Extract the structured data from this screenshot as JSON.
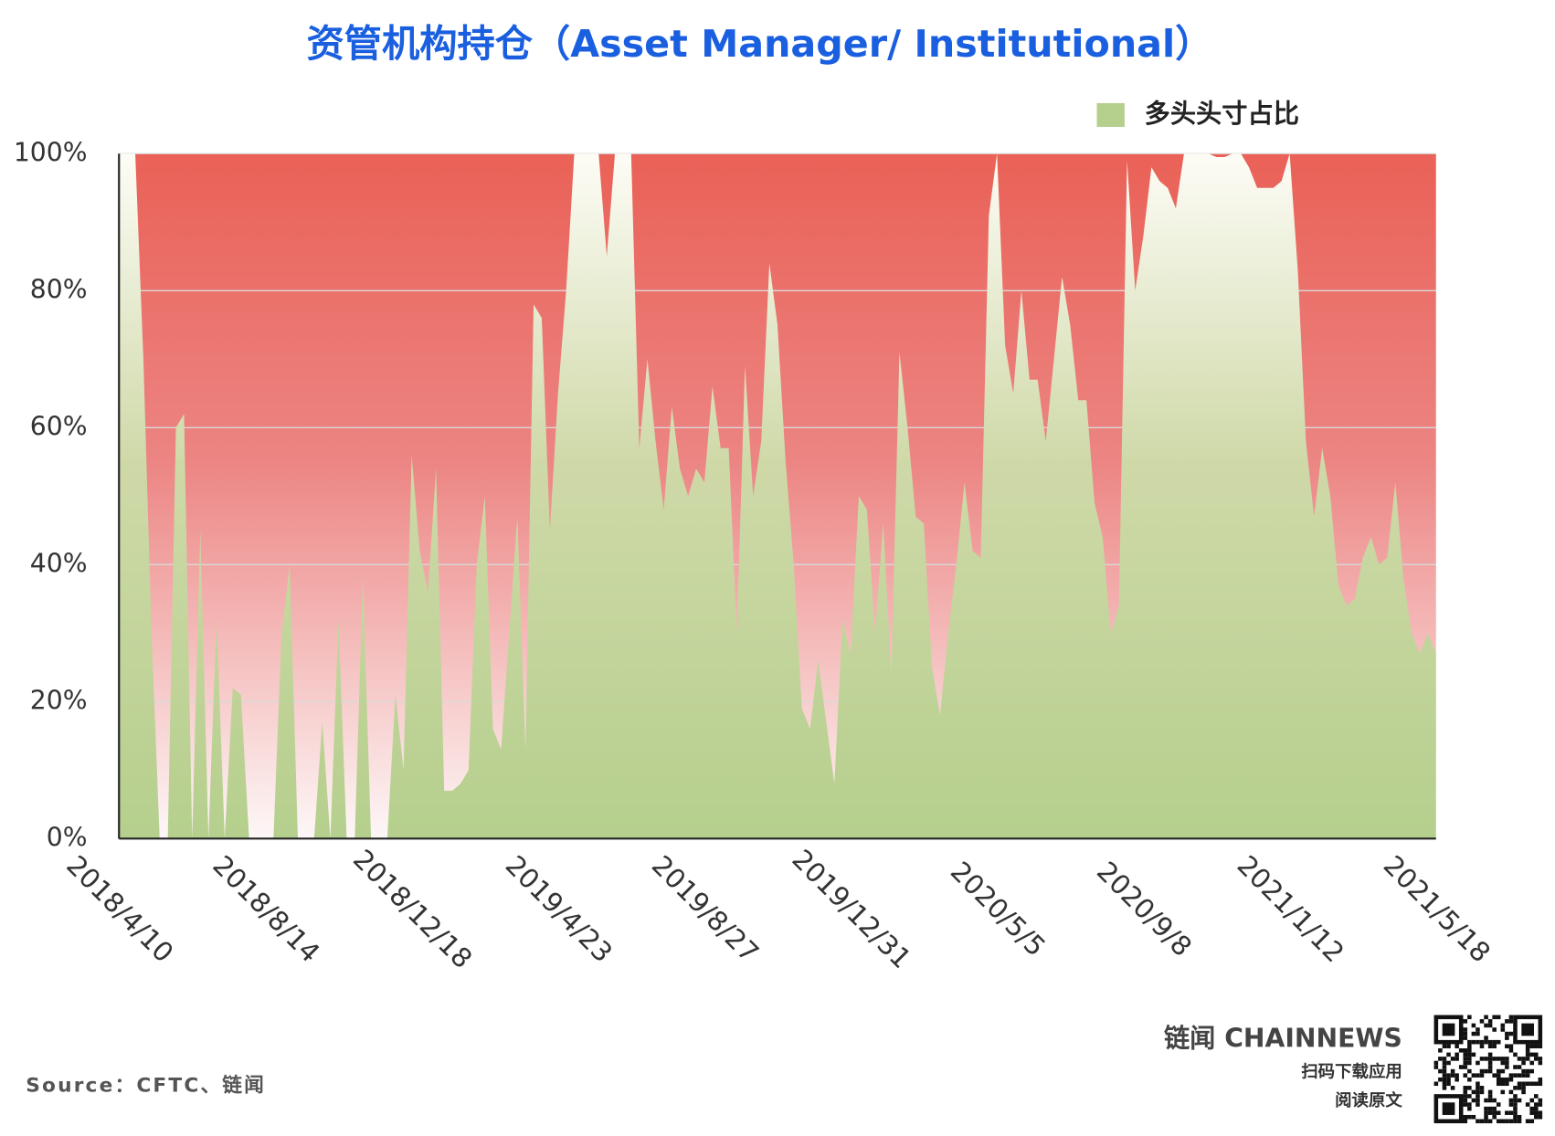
{
  "chart_data": {
    "type": "area",
    "title": "资管机构持仓（Asset Manager/ Institutional）",
    "source": "Source：CFTC、链闻",
    "brand": "链闻 CHAINNEWS",
    "brand_line1": "扫码下载应用",
    "brand_line2": "阅读原文",
    "categories": [
      "2018/4/10",
      null,
      null,
      null,
      null,
      null,
      null,
      null,
      null,
      null,
      null,
      null,
      null,
      null,
      null,
      null,
      null,
      null,
      "2018/8/14",
      null,
      null,
      null,
      null,
      null,
      null,
      null,
      null,
      null,
      null,
      null,
      null,
      null,
      null,
      null,
      null,
      null,
      "2018/12/18",
      null,
      null,
      null,
      null,
      null,
      null,
      null,
      null,
      null,
      null,
      null,
      null,
      null,
      null,
      null,
      null,
      null,
      "2019/4/23",
      null,
      null,
      null,
      null,
      null,
      null,
      null,
      null,
      null,
      null,
      null,
      null,
      null,
      null,
      null,
      null,
      null,
      "2019/8/27",
      null,
      null,
      null,
      null,
      null,
      null,
      null,
      null,
      null,
      null,
      null,
      null,
      null,
      null,
      null,
      null,
      null,
      "2019/12/31",
      null,
      null,
      null,
      null,
      null,
      null,
      null,
      null,
      null,
      null,
      null,
      null,
      null,
      null,
      null,
      null,
      null,
      "2020/5/5",
      null,
      null,
      null,
      null,
      null,
      null,
      null,
      null,
      null,
      null,
      null,
      null,
      null,
      null,
      null,
      null,
      null,
      "2020/9/8",
      null,
      null,
      null,
      null,
      null,
      null,
      null,
      null,
      null,
      null,
      null,
      null,
      null,
      null,
      null,
      null,
      null,
      "2021/1/12",
      null,
      null,
      null,
      null,
      null,
      null,
      null,
      null,
      null,
      null,
      null,
      null,
      null,
      null,
      null,
      null,
      null,
      "2021/5/18"
    ],
    "series": [
      {
        "name": "多头头寸占比",
        "color": "#b5cf8d",
        "values": [
          100,
          100,
          100,
          70,
          30,
          0,
          0,
          60,
          62,
          0,
          45,
          0,
          32,
          0,
          22,
          21,
          0,
          0,
          0,
          0,
          30,
          40,
          0,
          0,
          0,
          17,
          0,
          32,
          0,
          0,
          38,
          0,
          0,
          0,
          21,
          10,
          56,
          42,
          36,
          54,
          7,
          7,
          8,
          10,
          40,
          50,
          16,
          13,
          30,
          47,
          13,
          78,
          76,
          45,
          65,
          80,
          100,
          100,
          100,
          100,
          85,
          100,
          100,
          100,
          57,
          70,
          58,
          48,
          63,
          54,
          50,
          54,
          52,
          66,
          57,
          57,
          30,
          69,
          50,
          58,
          84,
          75,
          55,
          40,
          19,
          16,
          26,
          17,
          8,
          32,
          27,
          50,
          48,
          30,
          46,
          24,
          71,
          60,
          47,
          46,
          25,
          18,
          30,
          40,
          52,
          42,
          41,
          91,
          100,
          72,
          65,
          80,
          67,
          67,
          58,
          70,
          82,
          75,
          64,
          64,
          49,
          44,
          30,
          34,
          99,
          80,
          88,
          98,
          96,
          95,
          92,
          100,
          100,
          100,
          100,
          99.5,
          99.5,
          100,
          100,
          98,
          95,
          95,
          95,
          96,
          100,
          83,
          58,
          47,
          57,
          50,
          37,
          34,
          35,
          41,
          44,
          40,
          41,
          52,
          38,
          30,
          27,
          30,
          27
        ]
      }
    ],
    "ylim": [
      0,
      100
    ],
    "yticks": [
      {
        "value": 0,
        "label": "0%"
      },
      {
        "value": 20,
        "label": "20%"
      },
      {
        "value": 40,
        "label": "40%"
      },
      {
        "value": 60,
        "label": "60%"
      },
      {
        "value": 80,
        "label": "80%"
      },
      {
        "value": 100,
        "label": "100%"
      }
    ],
    "grid": true,
    "legend": "top-right"
  }
}
